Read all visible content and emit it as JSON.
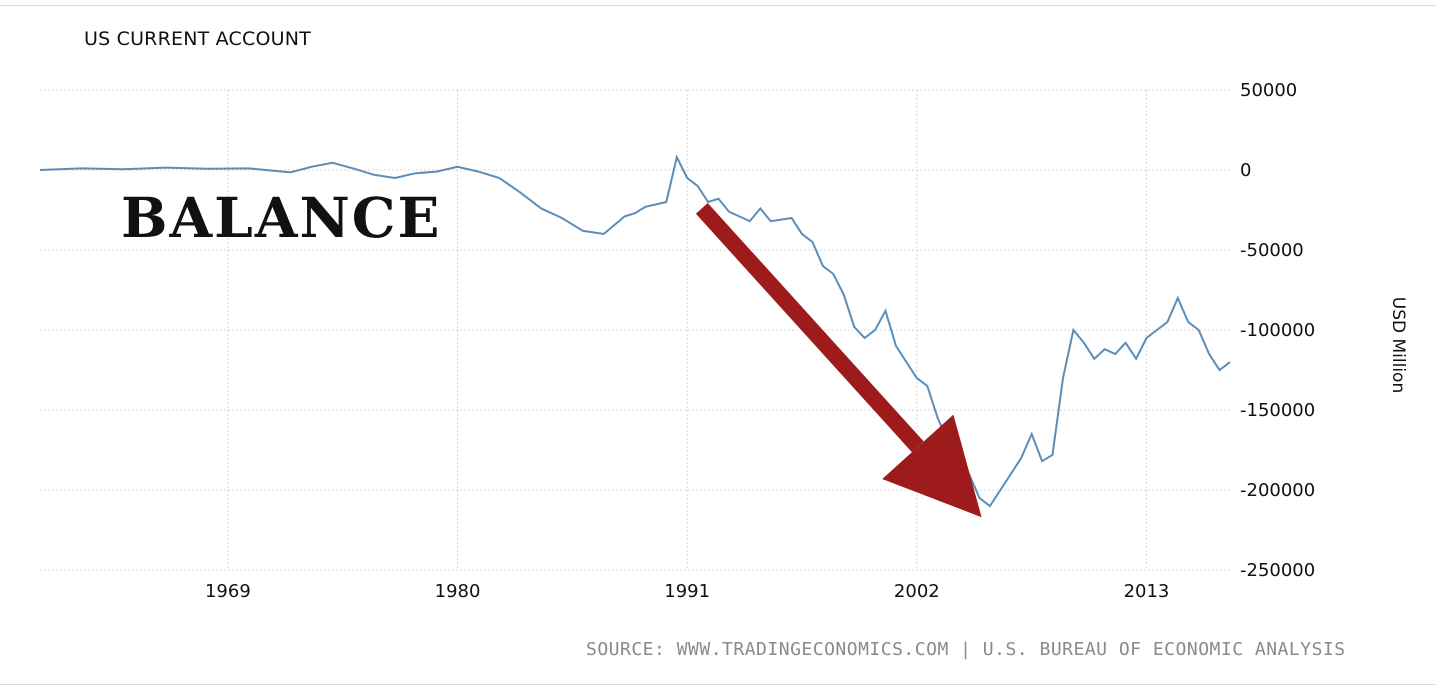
{
  "chart_data": {
    "type": "line",
    "title": "US CURRENT ACCOUNT",
    "overlay_text": "BALANCE",
    "ylabel": "USD Million",
    "xlabel": "",
    "source": "SOURCE: WWW.TRADINGECONOMICS.COM | U.S. BUREAU OF ECONOMIC ANALYSIS",
    "x_ticks": [
      "1969",
      "1980",
      "1991",
      "2002",
      "2013"
    ],
    "y_ticks": [
      "50000",
      "0",
      "-50000",
      "-100000",
      "-150000",
      "-200000",
      "-250000"
    ],
    "ylim": [
      -250000,
      50000
    ],
    "xlim": [
      1960,
      2017
    ],
    "grid": true,
    "line_color": "#5b8db8",
    "arrow_color": "#9e1b1b",
    "arrow": {
      "from": [
        1991.7,
        -24000
      ],
      "to": [
        2005.1,
        -217000
      ]
    },
    "series": [
      {
        "x": [
          1960,
          1962,
          1964,
          1966,
          1968,
          1970,
          1972,
          1973,
          1974,
          1975,
          1976,
          1977,
          1978,
          1979,
          1980,
          1981,
          1982,
          1983,
          1984,
          1985,
          1986,
          1987,
          1988,
          1988.5,
          1989,
          1990,
          1990.5,
          1991,
          1991.5,
          1992,
          1992.5,
          1993,
          1994,
          1994.5,
          1995,
          1996,
          1996.5,
          1997,
          1997.5,
          1998,
          1998.5,
          1999,
          1999.5,
          2000,
          2000.5,
          2001,
          2001.5,
          2002,
          2002.5,
          2003,
          2003.5,
          2004,
          2004.5,
          2005,
          2005.5,
          2006,
          2006.5,
          2007,
          2007.5,
          2008,
          2008.5,
          2009,
          2009.5,
          2010,
          2010.5,
          2011,
          2011.5,
          2012,
          2012.5,
          2013,
          2013.5,
          2014,
          2014.5,
          2015,
          2015.5,
          2016,
          2016.5,
          2017
        ],
        "values": [
          0,
          1000,
          500,
          1500,
          800,
          1000,
          -1500,
          2000,
          4500,
          1000,
          -3000,
          -5000,
          -2000,
          -1000,
          2000,
          -1000,
          -5000,
          -14000,
          -24000,
          -30000,
          -38000,
          -40000,
          -29000,
          -27000,
          -23000,
          -20000,
          8000,
          -5000,
          -10000,
          -20000,
          -18000,
          -26000,
          -32000,
          -24000,
          -32000,
          -30000,
          -40000,
          -45000,
          -60000,
          -65000,
          -78000,
          -98000,
          -105000,
          -100000,
          -88000,
          -110000,
          -120000,
          -130000,
          -135000,
          -155000,
          -170000,
          -180000,
          -190000,
          -205000,
          -210000,
          -200000,
          -190000,
          -180000,
          -165000,
          -182000,
          -178000,
          -130000,
          -100000,
          -108000,
          -118000,
          -112000,
          -115000,
          -108000,
          -118000,
          -105000,
          -100000,
          -95000,
          -80000,
          -95000,
          -100000,
          -115000,
          -125000,
          -120000
        ]
      }
    ]
  }
}
